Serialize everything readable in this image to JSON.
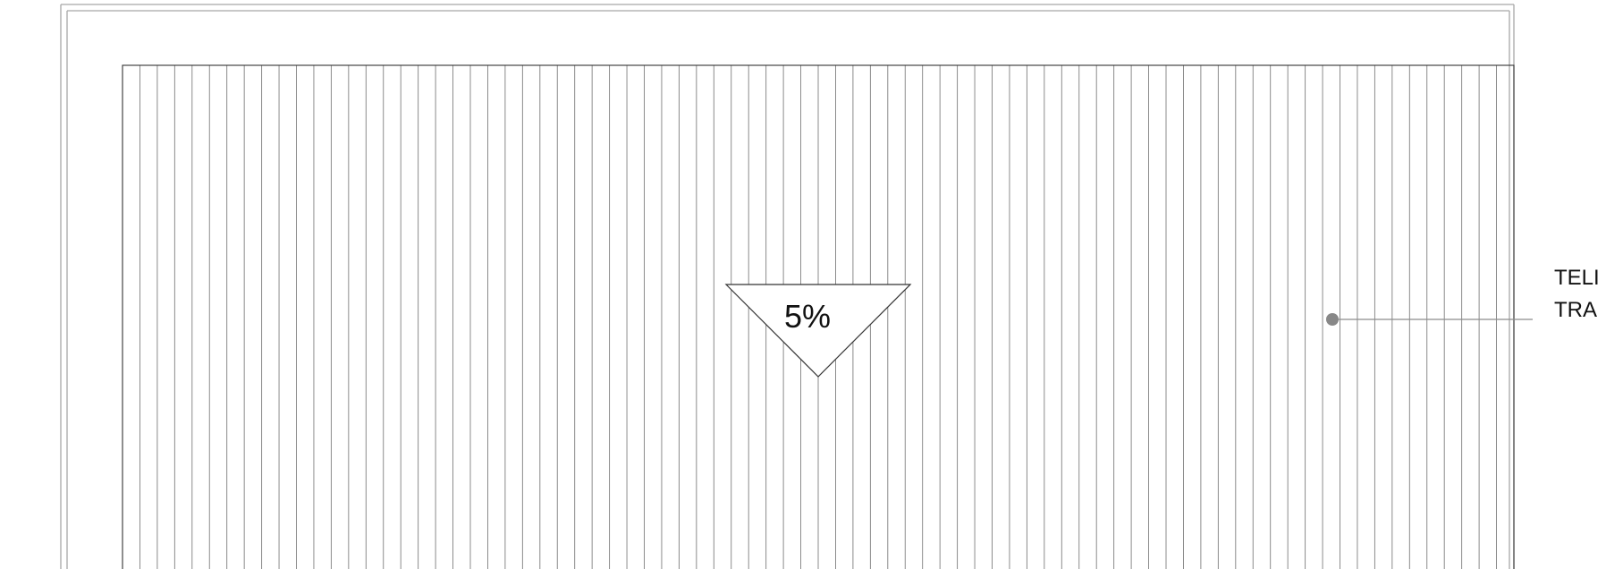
{
  "slope_marker": {
    "label": "5%"
  },
  "callout": {
    "line1": "TELI",
    "line2": "TRA"
  },
  "corrugation_count": 81,
  "colors": {
    "sheet_lines": "#7f7f7f",
    "outline": "#333333",
    "frame": "#a8a8a8",
    "leader_dot": "#888888"
  }
}
